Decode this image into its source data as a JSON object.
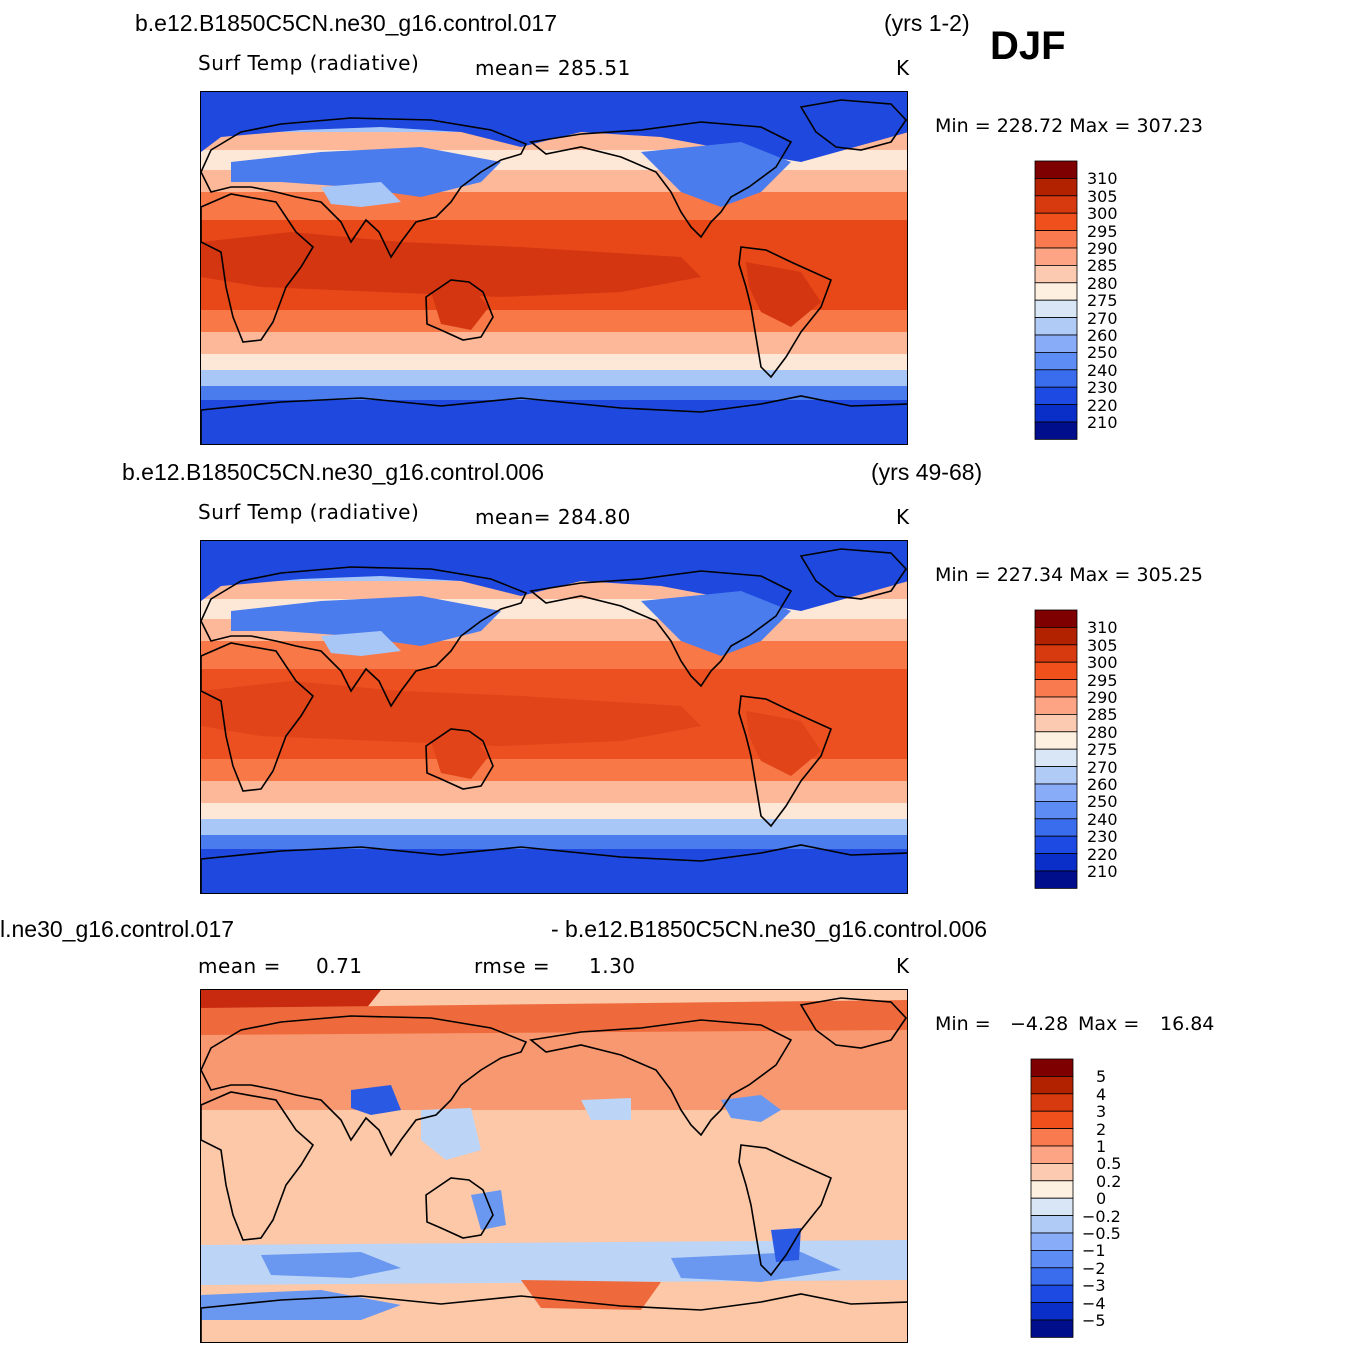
{
  "season": "DJF",
  "panels": [
    {
      "case": "b.e12.B1850C5CN.ne30_g16.control.017",
      "years": "(yrs 1-2)",
      "variable": "Surf Temp (radiative)",
      "mean": "mean=  285.51",
      "units": "K",
      "minmax": "Min  =  228.72  Max  =  307.23",
      "colorbar": {
        "levels": [
          "310",
          "305",
          "300",
          "295",
          "290",
          "285",
          "280",
          "275",
          "270",
          "260",
          "250",
          "240",
          "230",
          "220",
          "210"
        ],
        "colors": [
          "#7f0000",
          "#b22200",
          "#d83a10",
          "#f0501c",
          "#f87a4e",
          "#fca484",
          "#fccab0",
          "#fdf0e0",
          "#d8e6f6",
          "#b0ccf6",
          "#88acf8",
          "#5c8cf4",
          "#3a6cee",
          "#1d4ae2",
          "#0a2ec8",
          "#000e8c"
        ]
      },
      "map_colors": {
        "deep_cold": "#1e48de",
        "cold": "#4a7cee",
        "cool": "#a8c6f6",
        "neutral": "#fde8d8",
        "mild": "#fcb898",
        "warm": "#f87848",
        "hot": "#e84818",
        "hottest": "#d43612"
      }
    },
    {
      "case": "b.e12.B1850C5CN.ne30_g16.control.006",
      "years": "(yrs 49-68)",
      "variable": "Surf Temp (radiative)",
      "mean": "mean=  284.80",
      "units": "K",
      "minmax": "Min  =  227.34  Max  =  305.25",
      "colorbar": {
        "levels": [
          "310",
          "305",
          "300",
          "295",
          "290",
          "285",
          "280",
          "275",
          "270",
          "260",
          "250",
          "240",
          "230",
          "220",
          "210"
        ],
        "colors": [
          "#7f0000",
          "#b22200",
          "#d83a10",
          "#f0501c",
          "#f87a4e",
          "#fca484",
          "#fccab0",
          "#fdf0e0",
          "#d8e6f6",
          "#b0ccf6",
          "#88acf8",
          "#5c8cf4",
          "#3a6cee",
          "#1d4ae2",
          "#0a2ec8",
          "#000e8c"
        ]
      },
      "map_colors": {
        "deep_cold": "#1e48de",
        "cold": "#4a7cee",
        "cool": "#a8c6f6",
        "neutral": "#fde8d8",
        "mild": "#fcb898",
        "warm": "#f87848",
        "hot": "#ec5020",
        "hottest": "#e04418"
      }
    },
    {
      "case_left": "l.ne30_g16.control.017",
      "case_right": "- b.e12.B1850C5CN.ne30_g16.control.006",
      "mean_label": "mean  =",
      "mean_value": "0.71",
      "rmse_label": "rmse  =",
      "rmse_value": "1.30",
      "units": "K",
      "min_label": "Min  =",
      "min_value": "−4.28",
      "max_label": "Max  =",
      "max_value": "16.84",
      "colorbar": {
        "levels": [
          "5",
          "4",
          "3",
          "2",
          "1",
          "0.5",
          "0.2",
          "0",
          "−0.2",
          "−0.5",
          "−1",
          "−2",
          "−3",
          "−4",
          "−5"
        ],
        "colors": [
          "#7f0000",
          "#b22200",
          "#d83a10",
          "#f0501c",
          "#f87a4e",
          "#fca484",
          "#fccab0",
          "#fdf0e0",
          "#d8e6f6",
          "#b0ccf6",
          "#88acf8",
          "#5c8cf4",
          "#3a6cee",
          "#1d4ae2",
          "#0a2ec8",
          "#000e8c"
        ]
      },
      "map_colors": {
        "base": "#fcc8a8",
        "warm": "#f89870",
        "hot": "#ee6a3c",
        "hottest": "#c82a10",
        "cool": "#bcd4f6",
        "cold": "#6a98f0",
        "coldest": "#2a5ae4"
      }
    }
  ]
}
